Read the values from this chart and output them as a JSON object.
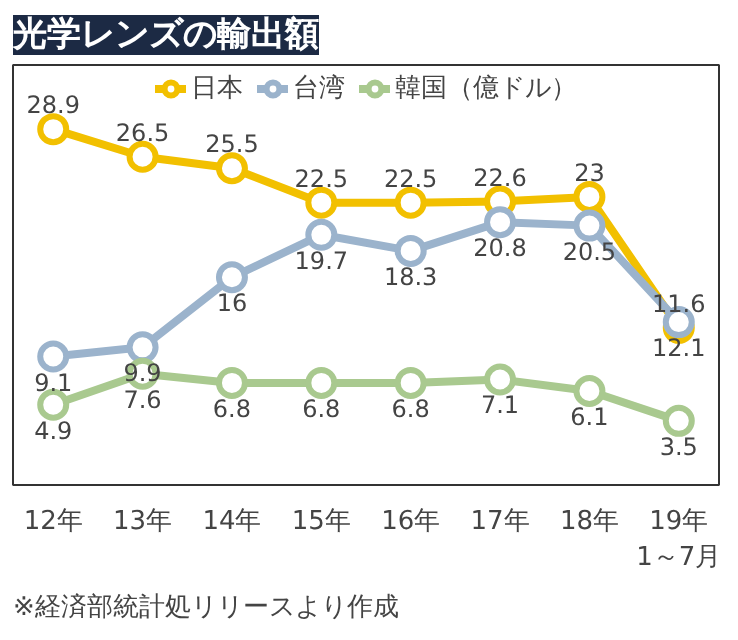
{
  "chart_data": {
    "type": "line",
    "title": "光学レンズの輸出額",
    "categories": [
      "12年",
      "13年",
      "14年",
      "15年",
      "16年",
      "17年",
      "18年",
      "19年\n1～7月"
    ],
    "series": [
      {
        "name": "日本",
        "color": "#f2c000",
        "values": [
          28.9,
          26.5,
          25.5,
          22.5,
          22.5,
          22.6,
          23,
          11.6
        ]
      },
      {
        "name": "台湾",
        "color": "#9bb3cc",
        "values": [
          9.1,
          9.9,
          16,
          19.7,
          18.3,
          20.8,
          20.5,
          12.1
        ]
      },
      {
        "name": "韓国（億ドル）",
        "color": "#a9c98f",
        "values": [
          4.9,
          7.6,
          6.8,
          6.8,
          6.8,
          7.1,
          6.1,
          3.5
        ]
      }
    ],
    "data_labels": true,
    "marker": "circle",
    "legend": "top",
    "grid": false,
    "tick_labels": "x",
    "annotations": [
      "※経済部統計処リリースより作成"
    ]
  }
}
